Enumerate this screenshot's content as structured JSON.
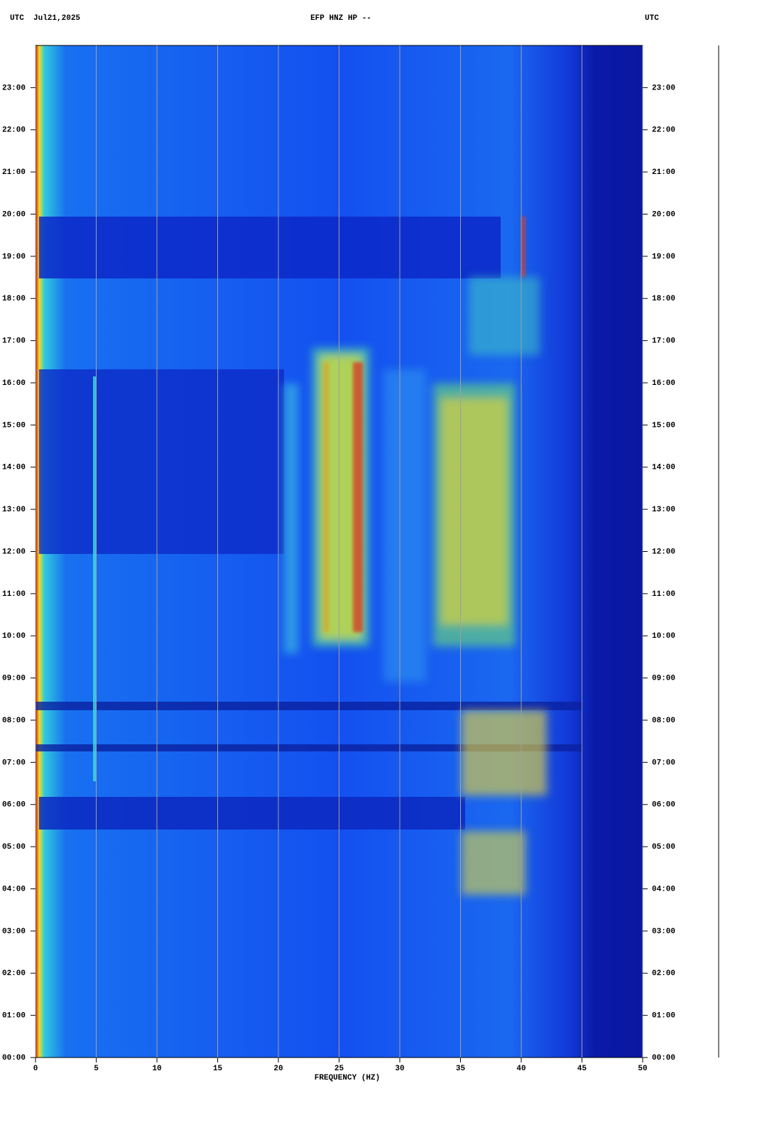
{
  "chart_data": {
    "type": "spectrogram",
    "title": "EFP HNZ HP --",
    "header_left": "UTC  Jul21,2025",
    "header_right": "UTC",
    "x_label": "FREQUENCY (HZ)",
    "xlim": [
      0,
      50
    ],
    "xticks": [
      0,
      5,
      10,
      15,
      20,
      25,
      30,
      35,
      40,
      45,
      50
    ],
    "ylim": [
      0,
      24
    ],
    "yticks": [
      {
        "value": 0,
        "label": "00:00"
      },
      {
        "value": 1,
        "label": "01:00"
      },
      {
        "value": 2,
        "label": "02:00"
      },
      {
        "value": 3,
        "label": "03:00"
      },
      {
        "value": 4,
        "label": "04:00"
      },
      {
        "value": 5,
        "label": "05:00"
      },
      {
        "value": 6,
        "label": "06:00"
      },
      {
        "value": 7,
        "label": "07:00"
      },
      {
        "value": 8,
        "label": "08:00"
      },
      {
        "value": 9,
        "label": "09:00"
      },
      {
        "value": 10,
        "label": "10:00"
      },
      {
        "value": 11,
        "label": "11:00"
      },
      {
        "value": 12,
        "label": "12:00"
      },
      {
        "value": 13,
        "label": "13:00"
      },
      {
        "value": 14,
        "label": "14:00"
      },
      {
        "value": 15,
        "label": "15:00"
      },
      {
        "value": 16,
        "label": "16:00"
      },
      {
        "value": 17,
        "label": "17:00"
      },
      {
        "value": 18,
        "label": "18:00"
      },
      {
        "value": 19,
        "label": "19:00"
      },
      {
        "value": 20,
        "label": "20:00"
      },
      {
        "value": 21,
        "label": "21:00"
      },
      {
        "value": 22,
        "label": "22:00"
      },
      {
        "value": 23,
        "label": "23:00"
      }
    ],
    "grid": true
  }
}
